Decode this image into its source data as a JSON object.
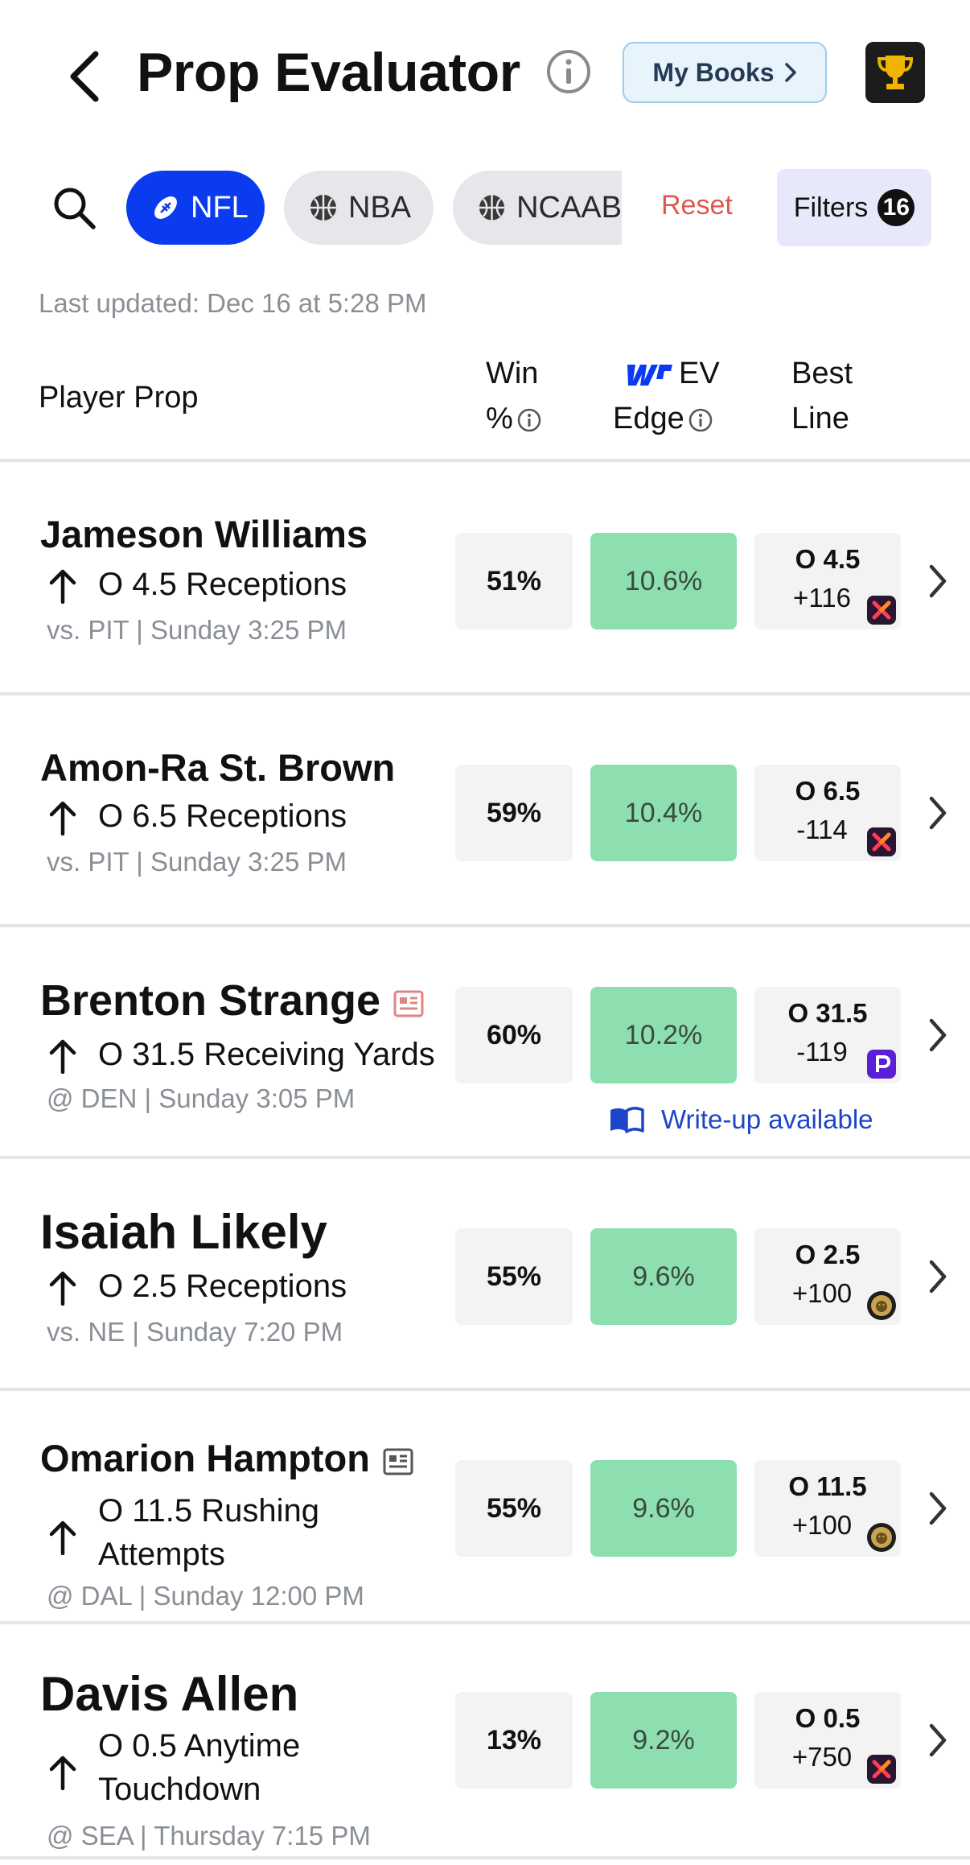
{
  "header": {
    "title": "Prop Evaluator",
    "my_books_label": "My Books"
  },
  "filters": {
    "chips": [
      {
        "label": "NFL",
        "active": true,
        "icon": "football-icon"
      },
      {
        "label": "NBA",
        "active": false,
        "icon": "basketball-icon"
      },
      {
        "label": "NCAAB",
        "active": false,
        "icon": "basketball-icon"
      }
    ],
    "reset_label": "Reset",
    "filters_label": "Filters",
    "filters_count": "16"
  },
  "last_updated": "Last updated: Dec 16 at 5:28 PM",
  "columns": {
    "player_prop": "Player Prop",
    "win_top": "Win",
    "win_bottom": "%",
    "ev_top": "EV",
    "ev_bottom": "Edge",
    "best_top": "Best",
    "best_bottom": "Line"
  },
  "colors": {
    "accent": "#0a3bef",
    "ev_fill": "#8ddfb0",
    "reset": "#e0564e",
    "link": "#1c46c7"
  },
  "rows": [
    {
      "name": "Jameson Williams",
      "line1": "O 4.5 Receptions",
      "line2": "",
      "game": "vs. PIT | Sunday 3:25 PM",
      "win": "51%",
      "ev": "10.6%",
      "best_line": "O 4.5",
      "best_odds": "+116",
      "book": "x-book",
      "news": false,
      "writeup": ""
    },
    {
      "name": "Amon-Ra St. Brown",
      "line1": "O 6.5 Receptions",
      "line2": "",
      "game": "vs. PIT | Sunday 3:25 PM",
      "win": "59%",
      "ev": "10.4%",
      "best_line": "O 6.5",
      "best_odds": "-114",
      "book": "x-book",
      "news": false,
      "writeup": ""
    },
    {
      "name": "Brenton Strange",
      "line1": "O 31.5 Receiving Yards",
      "line2": "",
      "game": "@ DEN | Sunday 3:05 PM",
      "win": "60%",
      "ev": "10.2%",
      "best_line": "O 31.5",
      "best_odds": "-119",
      "book": "p-book",
      "news": true,
      "writeup": "Write-up available"
    },
    {
      "name": "Isaiah Likely",
      "line1": "O 2.5 Receptions",
      "line2": "",
      "game": "vs. NE | Sunday 7:20 PM",
      "win": "55%",
      "ev": "9.6%",
      "best_line": "O 2.5",
      "best_odds": "+100",
      "book": "lion-book",
      "news": false,
      "writeup": ""
    },
    {
      "name": "Omarion Hampton",
      "line1": "O 11.5 Rushing",
      "line2": "Attempts",
      "game": "@ DAL | Sunday 12:00 PM",
      "win": "55%",
      "ev": "9.6%",
      "best_line": "O 11.5",
      "best_odds": "+100",
      "book": "lion-book",
      "news": true,
      "writeup": ""
    },
    {
      "name": "Davis Allen",
      "line1": "O 0.5 Anytime",
      "line2": "Touchdown",
      "game": "@ SEA | Thursday 7:15 PM",
      "win": "13%",
      "ev": "9.2%",
      "best_line": "O 0.5",
      "best_odds": "+750",
      "book": "x-book",
      "news": false,
      "writeup": ""
    }
  ]
}
